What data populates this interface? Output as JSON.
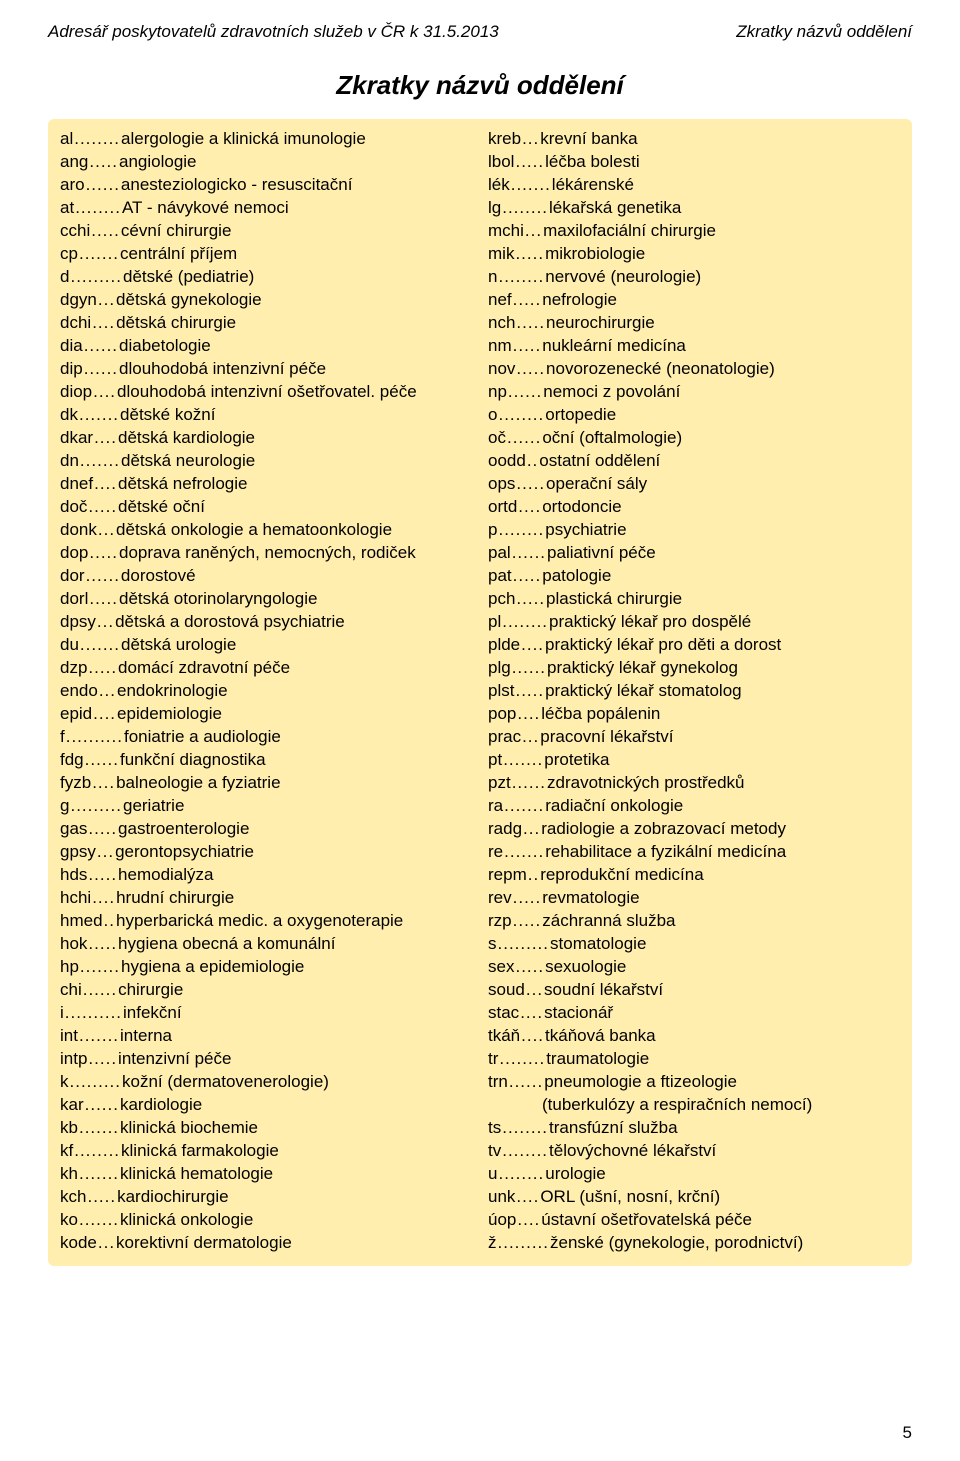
{
  "header_left": "Adresář poskytovatelů zdravotních služeb v ČR k 31.5.2013",
  "header_right": "Zkratky názvů oddělení",
  "title": "Zkratky názvů oddělení",
  "page_number": "5",
  "colors": {
    "background": "#ffffff",
    "highlight_background": "#ffeeae",
    "text": "#000000"
  },
  "font": {
    "family": "Arial",
    "body_size_pt": 12,
    "title_size_pt": 19
  },
  "left_col": [
    {
      "abbr": "al",
      "dots": "........",
      "def": "alergologie a klinická imunologie"
    },
    {
      "abbr": "ang",
      "dots": ".....",
      "def": "angiologie"
    },
    {
      "abbr": "aro",
      "dots": "......",
      "def": "anesteziologicko - resuscitační"
    },
    {
      "abbr": "at",
      "dots": "........",
      "def": "AT - návykové nemoci"
    },
    {
      "abbr": "cchi",
      "dots": ".....",
      "def": "cévní chirurgie"
    },
    {
      "abbr": "cp",
      "dots": ".......",
      "def": "centrální příjem"
    },
    {
      "abbr": "d",
      "dots": ".........",
      "def": "dětské (pediatrie)"
    },
    {
      "abbr": "dgyn",
      "dots": "...",
      "def": "dětská gynekologie"
    },
    {
      "abbr": "dchi",
      "dots": "....",
      "def": "dětská chirurgie"
    },
    {
      "abbr": "dia",
      "dots": "......",
      "def": "diabetologie"
    },
    {
      "abbr": "dip",
      "dots": "......",
      "def": "dlouhodobá intenzivní péče"
    },
    {
      "abbr": "diop",
      "dots": "....",
      "def": "dlouhodobá intenzivní ošetřovatel. péče"
    },
    {
      "abbr": "dk",
      "dots": ".......",
      "def": "dětské kožní"
    },
    {
      "abbr": "dkar",
      "dots": "....",
      "def": "dětská kardiologie"
    },
    {
      "abbr": "dn",
      "dots": ".......",
      "def": "dětská neurologie"
    },
    {
      "abbr": "dnef",
      "dots": "....",
      "def": "dětská nefrologie"
    },
    {
      "abbr": "doč",
      "dots": ".....",
      "def": "dětské oční"
    },
    {
      "abbr": "donk",
      "dots": "...",
      "def": "dětská onkologie a hematoonkologie"
    },
    {
      "abbr": "dop",
      "dots": ".....",
      "def": "doprava raněných, nemocných, rodiček"
    },
    {
      "abbr": "dor",
      "dots": "......",
      "def": "dorostové"
    },
    {
      "abbr": "dorl",
      "dots": ".....",
      "def": "dětská otorinolaryngologie"
    },
    {
      "abbr": "dpsy",
      "dots": "...",
      "def": "dětská a dorostová psychiatrie"
    },
    {
      "abbr": "du",
      "dots": ".......",
      "def": "dětská urologie"
    },
    {
      "abbr": "dzp",
      "dots": ".....",
      "def": "domácí zdravotní péče"
    },
    {
      "abbr": "endo",
      "dots": "...",
      "def": "endokrinologie"
    },
    {
      "abbr": "epid",
      "dots": "....",
      "def": "epidemiologie"
    },
    {
      "abbr": "f",
      "dots": "..........",
      "def": "foniatrie a audiologie"
    },
    {
      "abbr": "fdg",
      "dots": "......",
      "def": "funkční diagnostika"
    },
    {
      "abbr": "fyzb",
      "dots": "....",
      "def": "balneologie a fyziatrie"
    },
    {
      "abbr": "g",
      "dots": ".........",
      "def": "geriatrie"
    },
    {
      "abbr": "gas",
      "dots": ".....",
      "def": "gastroenterologie"
    },
    {
      "abbr": "gpsy",
      "dots": "...",
      "def": "gerontopsychiatrie"
    },
    {
      "abbr": "hds",
      "dots": ".....",
      "def": "hemodialýza"
    },
    {
      "abbr": "hchi",
      "dots": "....",
      "def": "hrudní chirurgie"
    },
    {
      "abbr": "hmed",
      "dots": "..",
      "def": "hyperbarická medic. a oxygenoterapie"
    },
    {
      "abbr": "hok",
      "dots": ".....",
      "def": "hygiena obecná a komunální"
    },
    {
      "abbr": "hp",
      "dots": ".......",
      "def": "hygiena a epidemiologie"
    },
    {
      "abbr": "chi",
      "dots": "......",
      "def": "chirurgie"
    },
    {
      "abbr": "i",
      "dots": "..........",
      "def": "infekční"
    },
    {
      "abbr": "int",
      "dots": ".......",
      "def": "interna"
    },
    {
      "abbr": "intp",
      "dots": ".....",
      "def": "intenzivní péče"
    },
    {
      "abbr": "k",
      "dots": ".........",
      "def": "kožní (dermatovenerologie)"
    },
    {
      "abbr": "kar",
      "dots": "......",
      "def": "kardiologie"
    },
    {
      "abbr": "kb",
      "dots": ".......",
      "def": "klinická biochemie"
    },
    {
      "abbr": "kf",
      "dots": "........",
      "def": "klinická farmakologie"
    },
    {
      "abbr": "kh",
      "dots": ".......",
      "def": "klinická hematologie"
    },
    {
      "abbr": "kch",
      "dots": ".....",
      "def": "kardiochirurgie"
    },
    {
      "abbr": "ko",
      "dots": ".......",
      "def": "klinická onkologie"
    },
    {
      "abbr": "kode",
      "dots": "...",
      "def": "korektivní dermatologie"
    }
  ],
  "right_col": [
    {
      "abbr": "kreb",
      "dots": "...",
      "def": " krevní banka"
    },
    {
      "abbr": "lbol",
      "dots": ".....",
      "def": " léčba bolesti"
    },
    {
      "abbr": "lék",
      "dots": ".......",
      "def": " lékárenské"
    },
    {
      "abbr": "lg",
      "dots": "........",
      "def": " lékařská genetika"
    },
    {
      "abbr": "mchi",
      "dots": "...",
      "def": " maxilofaciální chirurgie"
    },
    {
      "abbr": "mik",
      "dots": ".....",
      "def": " mikrobiologie"
    },
    {
      "abbr": "n",
      "dots": "........",
      "def": " nervové (neurologie)"
    },
    {
      "abbr": "nef",
      "dots": ".....",
      "def": " nefrologie"
    },
    {
      "abbr": "nch",
      "dots": ".....",
      "def": " neurochirurgie"
    },
    {
      "abbr": "nm",
      "dots": ".....",
      "def": " nukleární medicína"
    },
    {
      "abbr": "nov",
      "dots": ".....",
      "def": " novorozenecké (neonatologie)"
    },
    {
      "abbr": "np",
      "dots": "......",
      "def": " nemoci z povolání"
    },
    {
      "abbr": "o",
      "dots": "........",
      "def": " ortopedie"
    },
    {
      "abbr": "oč",
      "dots": "......",
      "def": " oční (oftalmologie)"
    },
    {
      "abbr": "oodd",
      "dots": "..",
      "def": " ostatní oddělení"
    },
    {
      "abbr": "ops",
      "dots": ".....",
      "def": " operační sály"
    },
    {
      "abbr": "ortd",
      "dots": "....",
      "def": " ortodoncie"
    },
    {
      "abbr": "p",
      "dots": "........",
      "def": " psychiatrie"
    },
    {
      "abbr": "pal",
      "dots": "......",
      "def": " paliativní péče"
    },
    {
      "abbr": "pat",
      "dots": ".....",
      "def": " patologie"
    },
    {
      "abbr": "pch",
      "dots": ".....",
      "def": " plastická chirurgie"
    },
    {
      "abbr": "pl",
      "dots": "........",
      "def": " praktický lékař pro dospělé"
    },
    {
      "abbr": "plde",
      "dots": "....",
      "def": " praktický lékař pro děti a dorost"
    },
    {
      "abbr": "plg",
      "dots": "......",
      "def": " praktický lékař gynekolog"
    },
    {
      "abbr": "plst",
      "dots": ".....",
      "def": " praktický lékař stomatolog"
    },
    {
      "abbr": "pop",
      "dots": "....",
      "def": " léčba popálenin"
    },
    {
      "abbr": "prac",
      "dots": "...",
      "def": " pracovní lékařství"
    },
    {
      "abbr": "pt",
      "dots": ".......",
      "def": " protetika"
    },
    {
      "abbr": "pzt",
      "dots": "......",
      "def": " zdravotnických prostředků"
    },
    {
      "abbr": "ra",
      "dots": ".......",
      "def": " radiační onkologie"
    },
    {
      "abbr": "radg",
      "dots": "...",
      "def": " radiologie a zobrazovací metody"
    },
    {
      "abbr": "re",
      "dots": ".......",
      "def": " rehabilitace a fyzikální medicína"
    },
    {
      "abbr": "repm",
      "dots": "..",
      "def": " reprodukční medicína"
    },
    {
      "abbr": "rev",
      "dots": ".....",
      "def": " revmatologie"
    },
    {
      "abbr": "rzp",
      "dots": ".....",
      "def": " záchranná služba"
    },
    {
      "abbr": "s",
      "dots": ".........",
      "def": " stomatologie"
    },
    {
      "abbr": "sex",
      "dots": ".....",
      "def": " sexuologie"
    },
    {
      "abbr": "soud",
      "dots": "...",
      "def": " soudní lékařství"
    },
    {
      "abbr": "stac",
      "dots": "....",
      "def": " stacionář"
    },
    {
      "abbr": "tkáň",
      "dots": "....",
      "def": " tkáňová banka"
    },
    {
      "abbr": "tr",
      "dots": "........",
      "def": " traumatologie"
    },
    {
      "abbr": "trn",
      "dots": "......",
      "def": " pneumologie a ftizeologie",
      "sub": "(tuberkulózy a respiračních nemocí)"
    },
    {
      "abbr": "ts",
      "dots": "........",
      "def": " transfúzní služba"
    },
    {
      "abbr": "tv",
      "dots": "........",
      "def": " tělovýchovné lékařství"
    },
    {
      "abbr": "u",
      "dots": "........",
      "def": " urologie"
    },
    {
      "abbr": "unk",
      "dots": "....",
      "def": " ORL (ušní, nosní, krční)"
    },
    {
      "abbr": "úop",
      "dots": "....",
      "def": " ústavní ošetřovatelská péče"
    },
    {
      "abbr": "ž",
      "dots": ".........",
      "def": " ženské (gynekologie, porodnictví)"
    }
  ]
}
